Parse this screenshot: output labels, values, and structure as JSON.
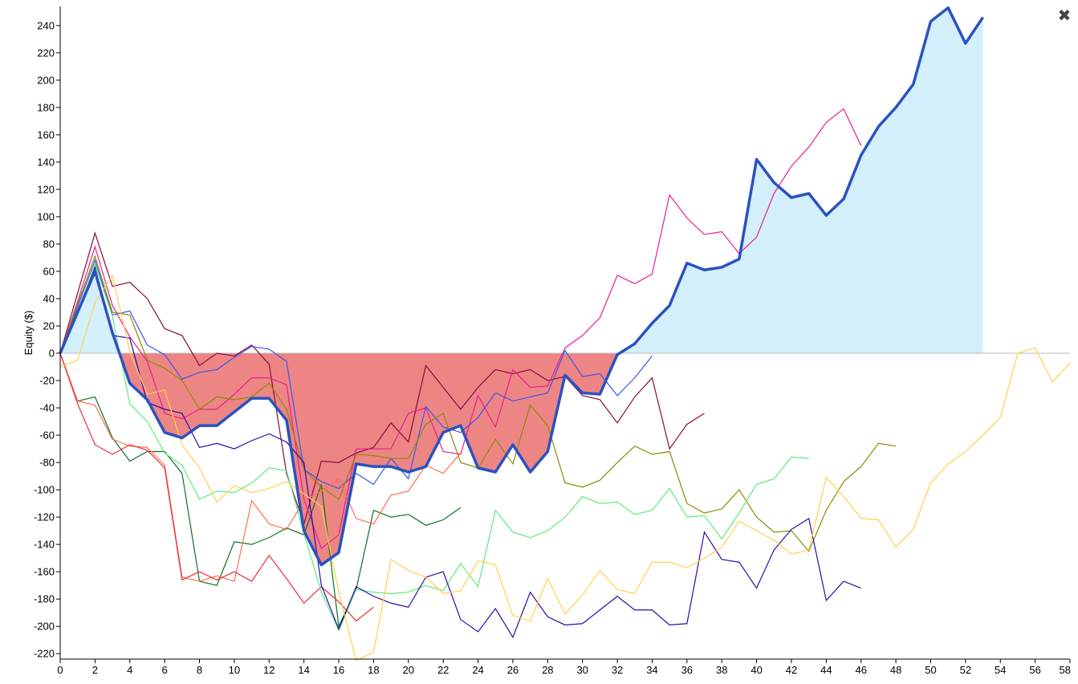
{
  "close_button": {
    "glyph": "✖"
  },
  "chart_data": {
    "type": "line",
    "title": "",
    "xlabel": "",
    "ylabel": "Equity ($)",
    "xlim": [
      0,
      58
    ],
    "ylim": [
      -224,
      254
    ],
    "x_ticks": [
      0,
      2,
      4,
      6,
      8,
      10,
      12,
      14,
      16,
      18,
      20,
      22,
      24,
      26,
      28,
      30,
      32,
      34,
      36,
      38,
      40,
      42,
      44,
      46,
      48,
      50,
      52,
      54,
      56,
      58
    ],
    "y_ticks": [
      240,
      220,
      200,
      180,
      160,
      140,
      120,
      100,
      80,
      60,
      40,
      20,
      0,
      -20,
      -40,
      -60,
      -80,
      -100,
      -120,
      -140,
      -160,
      -180,
      -200,
      -220
    ],
    "grid": false,
    "fill_positive_color": "#d2effb",
    "fill_negative_color": "#ed8585",
    "zero_line_color": "#bbbbbb",
    "main_series": {
      "name": "main",
      "color": "#2a52be",
      "values": [
        0,
        30,
        60,
        15,
        -22,
        -34,
        -58,
        -62,
        -53,
        -53,
        -43,
        -33,
        -33,
        -49,
        -130,
        -155,
        -146,
        -81,
        -83,
        -83,
        -87,
        -83,
        -58,
        -53,
        -84,
        -87,
        -67,
        -87,
        -72,
        -16,
        -29,
        -30,
        -1,
        7,
        22,
        35,
        66,
        61,
        63,
        69,
        142,
        125,
        114,
        117,
        101,
        113,
        145,
        166,
        180,
        197,
        243,
        253,
        227,
        246
      ]
    },
    "series": [
      {
        "name": "dark-red",
        "color": "#8b0a3a",
        "values": [
          0,
          44,
          88,
          49,
          52,
          40,
          18,
          13,
          -9,
          0,
          -2,
          6,
          -8,
          -88,
          -125,
          -79,
          -80,
          -73,
          -69,
          -51,
          -65,
          -9,
          -25,
          -41,
          -25,
          -12,
          -15,
          -12,
          -20,
          -17,
          -31,
          -34,
          -51,
          -32,
          -18,
          -70,
          -52,
          -44
        ]
      },
      {
        "name": "magenta",
        "color": "#e91e8c",
        "values": [
          0,
          38,
          78,
          35,
          12,
          -6,
          -44,
          -48,
          -41,
          -41,
          -30,
          -18,
          -18,
          -23,
          -107,
          -143,
          -133,
          -70,
          -70,
          -70,
          -44,
          -40,
          -72,
          -74,
          -31,
          -54,
          -12,
          -25,
          -24,
          4,
          13,
          26,
          57,
          51,
          58,
          116,
          99,
          87,
          89,
          73,
          85,
          117,
          137,
          151,
          169,
          179,
          152
        ]
      },
      {
        "name": "blue",
        "color": "#3a55ee",
        "values": [
          0,
          34,
          68,
          28,
          31,
          6,
          -1,
          -19,
          -14,
          -12,
          -3,
          5,
          3,
          -6,
          -85,
          -94,
          -99,
          -88,
          -96,
          -77,
          -92,
          -39,
          -54,
          -58,
          -47,
          -29,
          -35,
          -32,
          -29,
          2,
          -17,
          -15,
          -31,
          -18,
          -2
        ]
      },
      {
        "name": "dark-green",
        "color": "#0d6e22",
        "values": [
          0,
          -35,
          -32,
          -62,
          -79,
          -72,
          -72,
          -88,
          -167,
          -170,
          -138,
          -140,
          -135,
          -128,
          -133,
          -96,
          -200,
          -173,
          -115,
          -120,
          -118,
          -126,
          -122,
          -113
        ]
      },
      {
        "name": "olive",
        "color": "#8b8b00",
        "values": [
          0,
          36,
          71,
          30,
          28,
          -5,
          -11,
          -20,
          -41,
          -32,
          -34,
          -32,
          -22,
          -41,
          -85,
          -98,
          -107,
          -74,
          -75,
          -77,
          -77,
          -52,
          -44,
          -80,
          -84,
          -63,
          -81,
          -38,
          -53,
          -95,
          -98,
          -93,
          -80,
          -68,
          -74,
          -72,
          -110,
          -117,
          -114,
          -100,
          -120,
          -131,
          -130,
          -145,
          -115,
          -94,
          -83,
          -66,
          -68
        ]
      },
      {
        "name": "orange-red",
        "color": "#ff6f4f",
        "values": [
          0,
          -35,
          -38,
          -63,
          -68,
          -69,
          -82,
          -164,
          -167,
          -163,
          -167,
          -108,
          -125,
          -129,
          -108,
          -101,
          -92,
          -121,
          -125,
          -104,
          -101,
          -82,
          -88,
          -73
        ]
      },
      {
        "name": "red",
        "color": "#f02a3a",
        "values": [
          0,
          -37,
          -67,
          -74,
          -67,
          -71,
          -84,
          -166,
          -160,
          -166,
          -160,
          -167,
          -148,
          -165,
          -183,
          -171,
          -182,
          -196,
          -186
        ]
      },
      {
        "name": "light-green",
        "color": "#5fea7c",
        "values": [
          0,
          30,
          65,
          27,
          -37,
          -50,
          -73,
          -82,
          -107,
          -101,
          -102,
          -95,
          -84,
          -86,
          -132,
          -175,
          -203,
          -173,
          -175,
          -176,
          -175,
          -170,
          -174,
          -154,
          -171,
          -115,
          -131,
          -135,
          -130,
          -120,
          -105,
          -110,
          -109,
          -118,
          -115,
          -99,
          -120,
          -119,
          -136,
          -117,
          -96,
          -92,
          -76,
          -77
        ]
      },
      {
        "name": "indigo",
        "color": "#2a0aaa",
        "values": [
          0,
          30,
          63,
          13,
          11,
          -36,
          -41,
          -44,
          -69,
          -66,
          -70,
          -64,
          -59,
          -65,
          -80,
          -170,
          -202,
          -171,
          -178,
          -183,
          -186,
          -164,
          -160,
          -195,
          -204,
          -187,
          -208,
          -175,
          -193,
          -199,
          -198,
          -188,
          -178,
          -188,
          -188,
          -199,
          -198,
          -131,
          -151,
          -153,
          -172,
          -144,
          -129,
          -121,
          -181,
          -167,
          -172
        ]
      },
      {
        "name": "yellow",
        "color": "#ffd04a",
        "values": [
          -10,
          -5,
          37,
          57,
          1,
          -30,
          -27,
          -67,
          -84,
          -109,
          -97,
          -102,
          -99,
          -94,
          -103,
          -112,
          -175,
          -225,
          -219,
          -151,
          -159,
          -164,
          -176,
          -174,
          -152,
          -155,
          -192,
          -196,
          -165,
          -191,
          -177,
          -159,
          -173,
          -176,
          -153,
          -153,
          -157,
          -150,
          -142,
          -123,
          -130,
          -137,
          -147,
          -144,
          -91,
          -105,
          -121,
          -122,
          -142,
          -129,
          -95,
          -81,
          -72,
          -60,
          -47,
          0,
          4,
          -21,
          -7
        ]
      }
    ]
  }
}
